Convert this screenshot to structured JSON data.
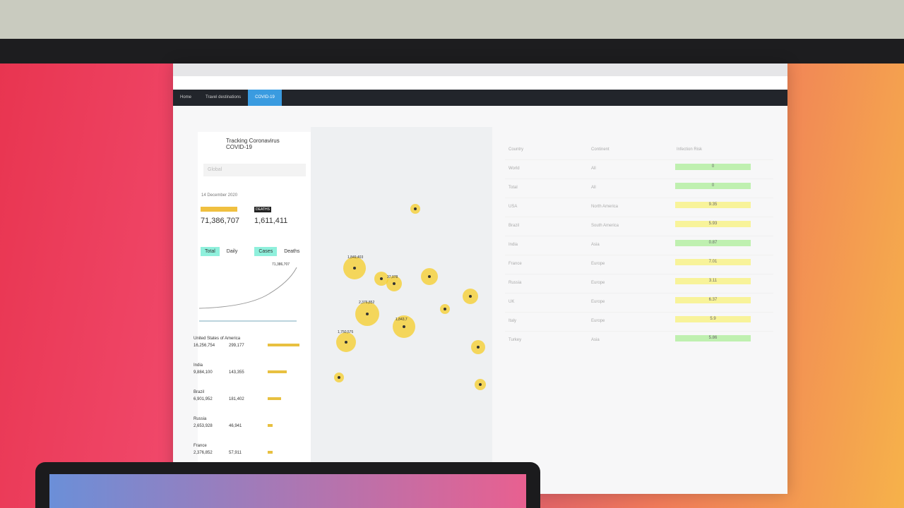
{
  "nav": [
    "Home",
    "Travel destinations"
  ],
  "panel": {
    "title": "Tracking Coronavirus COVID-19",
    "region": "Global",
    "date": "14 December 2020",
    "deaths_label": "DEATHS",
    "total_cases": "71,386,707",
    "total_deaths": "1,611,411",
    "toggles": [
      "Total",
      "Daily",
      "Cases",
      "Deaths"
    ],
    "chart_label": "71,386,707",
    "countries": [
      {
        "name": "United States of America",
        "cases": 16256754,
        "cases_label": "16,256,754",
        "deaths": "299,177"
      },
      {
        "name": "India",
        "cases": 9884100,
        "cases_label": "9,884,100",
        "deaths": "143,355"
      },
      {
        "name": "Brazil",
        "cases": 6901952,
        "cases_label": "6,901,952",
        "deaths": "181,402"
      },
      {
        "name": "Russia",
        "cases": 2653928,
        "cases_label": "2,653,928",
        "deaths": "46,941"
      },
      {
        "name": "France",
        "cases": 2376852,
        "cases_label": "2,376,852",
        "deaths": "57,911"
      }
    ]
  },
  "map": {
    "labels": [
      "1,849,403",
      "37,078",
      "2,376,852",
      "1,843,7",
      "1,750,575"
    ]
  },
  "table": {
    "headers": [
      "Country",
      "Continent",
      "Infection Risk"
    ],
    "rows": [
      [
        "World",
        "All",
        "0"
      ],
      [
        "Total",
        "All",
        "0"
      ],
      [
        "USA",
        "North America",
        "9.35"
      ],
      [
        "Brazil",
        "South America",
        "5.93"
      ],
      [
        "India",
        "Asia",
        "0.87"
      ],
      [
        "France",
        "Europe",
        "7.01"
      ],
      [
        "Russia",
        "Europe",
        "3.11"
      ],
      [
        "UK",
        "Europe",
        "6.37"
      ],
      [
        "Italy",
        "Europe",
        "5.9"
      ],
      [
        "Turkey",
        "Asia",
        "5.86"
      ]
    ],
    "risk_colors": [
      "#bff0b0",
      "#bff0b0",
      "#f8f39a",
      "#f8f39a",
      "#bff0b0",
      "#f8f39a",
      "#f8f39a",
      "#f8f39a",
      "#f8f39a",
      "#bff0b0"
    ]
  }
}
